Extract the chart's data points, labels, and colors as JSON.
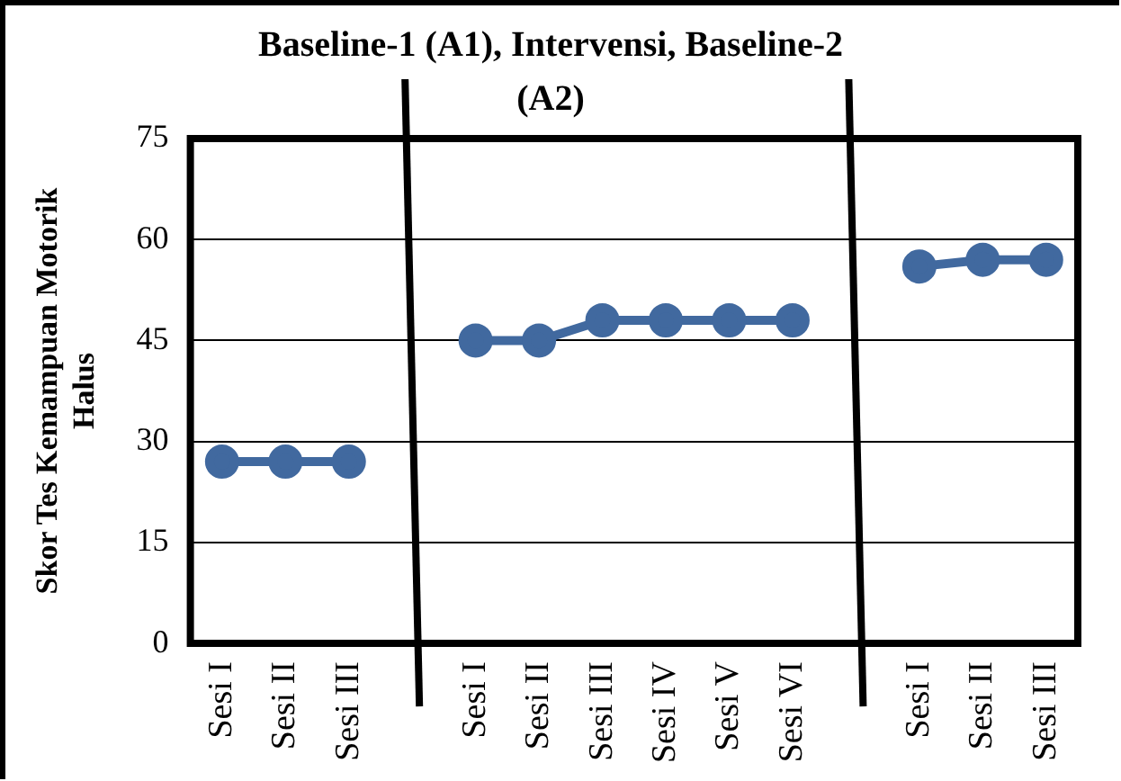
{
  "chart_data": {
    "type": "line",
    "title": "Baseline-1 (A1), Intervensi, Baseline-2 (A2)",
    "ylabel": "Skor Tes Kemampuan Motorik Halus",
    "categories": [
      "Sesi I",
      "Sesi II",
      "Sesi III",
      null,
      "Sesi I",
      "Sesi II",
      "Sesi III",
      "Sesi IV",
      "Sesi V",
      "Sesi VI",
      null,
      "Sesi I",
      "Sesi II",
      "Sesi III"
    ],
    "series": [
      {
        "color": "#41699f",
        "values": [
          27,
          27,
          27,
          null,
          45,
          45,
          48,
          48,
          48,
          48,
          null,
          56,
          57,
          57
        ]
      }
    ],
    "ylim": [
      0,
      75
    ],
    "yticks": [
      0,
      15,
      30,
      45,
      60,
      75
    ],
    "grid": "y",
    "legend": false,
    "marker": "circle",
    "line_style": "solid"
  }
}
